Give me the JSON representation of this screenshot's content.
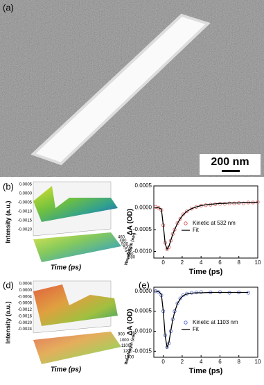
{
  "panels": {
    "a": "(a)",
    "b": "(b)",
    "d": "(d)",
    "e": "(e)"
  },
  "image": {
    "scale_bar": "200 nm"
  },
  "surface_plots": [
    {
      "z_label": "Intensity (a.u.)",
      "x_label": "Time (ps)",
      "y_label": "Wavelength (nm)",
      "z_ticks": [
        "0.0005",
        "0.0000",
        "-0.0005",
        "-0.0010",
        "-0.0015",
        "-0.0020"
      ],
      "y_ticks": [
        "460",
        "480",
        "500",
        "520",
        "540",
        "560",
        "580"
      ]
    },
    {
      "z_label": "Intensity (a.u.)",
      "x_label": "Time (ps)",
      "y_label": "Wavelength (nm)",
      "z_ticks": [
        "0.0004",
        "0.0000",
        "-0.0004",
        "-0.0008",
        "-0.0012",
        "-0.0016",
        "-0.0020",
        "-0.0024"
      ],
      "y_ticks": [
        "900",
        "1000",
        "1100",
        "1200",
        "1300"
      ]
    }
  ],
  "chart_data": [
    {
      "type": "line",
      "xlabel": "Time (ps)",
      "ylabel": "ΔA (OD)",
      "xlim": [
        -1,
        10
      ],
      "xticks": [
        0,
        2,
        4,
        6,
        8,
        10
      ],
      "ylim": [
        -0.00115,
        0.0005
      ],
      "yticks": [
        {
          "value": -0.001,
          "label": "-0.0010"
        },
        -0.0005,
        {
          "value": 0,
          "label": "0.0000"
        },
        0.0005
      ],
      "x": [
        -0.8,
        -0.5,
        -0.2,
        0,
        0.2,
        0.4,
        0.6,
        0.8,
        1.0,
        1.2,
        1.5,
        1.8,
        2.1,
        2.5,
        3,
        3.5,
        4,
        4.5,
        5,
        5.5,
        6,
        6.5,
        7,
        7.5,
        8,
        8.5,
        9,
        9.5,
        10
      ],
      "series": [
        {
          "name": "Kinetic at 532 nm",
          "color": "#e06060",
          "style": "markers",
          "values": [
            2e-05,
            0.0,
            -5e-05,
            -0.0004,
            -0.0008,
            -0.00095,
            -0.0009,
            -0.00075,
            -0.0006,
            -0.0005,
            -0.00035,
            -0.00025,
            -0.00015,
            -8e-05,
            -2e-05,
            2e-05,
            5e-05,
            6e-05,
            7e-05,
            8e-05,
            9e-05,
            9e-05,
            0.0001,
            0.0001,
            0.00011,
            0.0001,
            0.00012,
            0.00012,
            0.00013
          ]
        },
        {
          "name": "Fit",
          "color": "#000000",
          "style": "line",
          "values": [
            0,
            0,
            -3e-05,
            -0.0004,
            -0.00082,
            -0.00095,
            -0.00088,
            -0.00074,
            -0.00061,
            -0.0005,
            -0.00036,
            -0.00025,
            -0.00016,
            -8e-05,
            -2e-05,
            2e-05,
            5e-05,
            7e-05,
            8e-05,
            9e-05,
            0.0001,
            0.0001,
            0.00011,
            0.00011,
            0.00011,
            0.00012,
            0.00012,
            0.00012,
            0.00013
          ]
        }
      ]
    },
    {
      "type": "line",
      "xlabel": "Time (ps)",
      "ylabel": "ΔA (OD)",
      "xlim": [
        -1,
        10
      ],
      "xticks": [
        0,
        2,
        4,
        6,
        8,
        10
      ],
      "ylim": [
        -0.00165,
        0.0001
      ],
      "yticks": [
        {
          "value": -0.0015,
          "label": "-0.0015"
        },
        {
          "value": -0.001,
          "label": "-0.0010"
        },
        -0.0005,
        {
          "value": 0,
          "label": "0.0000"
        }
      ],
      "x": [
        -0.8,
        -0.5,
        -0.2,
        0,
        0.2,
        0.4,
        0.6,
        0.8,
        1.0,
        1.2,
        1.5,
        1.8,
        2.1,
        2.5,
        3,
        3.5,
        4,
        5,
        6,
        7,
        8,
        9
      ],
      "series": [
        {
          "name": "Kinetic at 1103 nm",
          "color": "#5a6fd0",
          "style": "markers",
          "values": [
            0,
            -2e-05,
            -0.0001,
            -0.0005,
            -0.0011,
            -0.0014,
            -0.0013,
            -0.001,
            -0.0007,
            -0.0005,
            -0.0003,
            -0.00018,
            -0.0001,
            -6e-05,
            -4e-05,
            -3e-05,
            -2e-05,
            -3e-05,
            -2e-05,
            -4e-05,
            -3e-05,
            -4e-05
          ]
        },
        {
          "name": "Fit",
          "color": "#000000",
          "style": "line",
          "values": [
            0,
            -1e-05,
            -8e-05,
            -0.0005,
            -0.00112,
            -0.0014,
            -0.00128,
            -0.00098,
            -0.00072,
            -0.00052,
            -0.00031,
            -0.00019,
            -0.00011,
            -7e-05,
            -5e-05,
            -4e-05,
            -4e-05,
            -3e-05,
            -3e-05,
            -3e-05,
            -3e-05,
            -3e-05
          ]
        }
      ]
    }
  ]
}
